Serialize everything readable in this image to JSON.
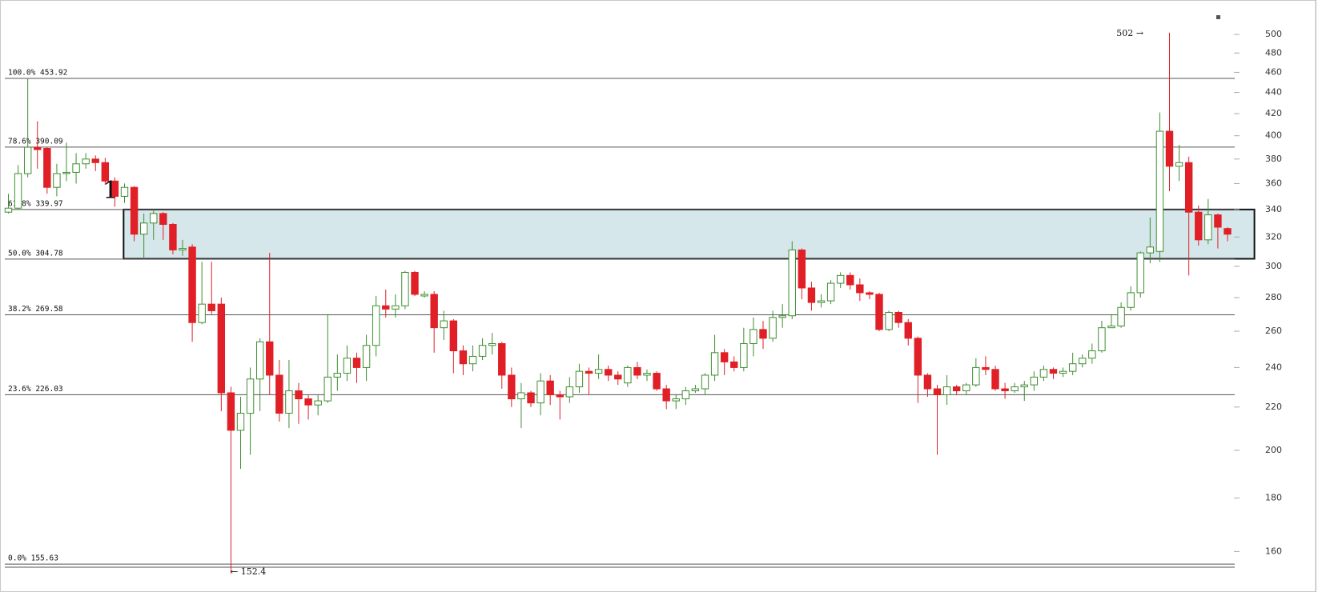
{
  "chart_data": {
    "type": "candlestick",
    "log_scale": true,
    "ylim": [
      146.6,
      539.5
    ],
    "yticks": [
      160,
      180,
      200,
      220,
      240,
      260,
      280,
      300,
      320,
      340,
      360,
      380,
      400,
      420,
      440,
      460,
      480,
      500
    ],
    "up_color": "#3d8f2f",
    "down_color": "#e01f26",
    "open": [
      338,
      341,
      368,
      390,
      389,
      357,
      368,
      369,
      376,
      380,
      377,
      362,
      350,
      357,
      322,
      330,
      337,
      329,
      311,
      313,
      265,
      276,
      276,
      227,
      209,
      217,
      234,
      254,
      236,
      217,
      228,
      224,
      221,
      223,
      235,
      237,
      245,
      240,
      252,
      275,
      273,
      275,
      296,
      281,
      282,
      262,
      266,
      249,
      242,
      246,
      252,
      253,
      236,
      224,
      227,
      222,
      233,
      226,
      225,
      230,
      238,
      237,
      239,
      236,
      232,
      240,
      236,
      237,
      229,
      223,
      224,
      228,
      229,
      236,
      248,
      243,
      240,
      253,
      261,
      256,
      268,
      269,
      311,
      286,
      277,
      278,
      289,
      294,
      288,
      283,
      282,
      261,
      271,
      265,
      256,
      236,
      229,
      226,
      230,
      228,
      231,
      240,
      239,
      229,
      228,
      230,
      231,
      235,
      239,
      237,
      238,
      242,
      245,
      249,
      262,
      263,
      274,
      283,
      309,
      310,
      404,
      374,
      377,
      338,
      318,
      336,
      326
    ],
    "high": [
      352,
      375,
      454,
      413,
      390,
      376,
      394,
      385,
      385,
      383,
      381,
      365,
      360,
      358,
      337,
      340,
      338,
      330,
      318,
      315,
      303,
      303,
      280,
      230,
      225,
      240,
      256,
      309,
      244,
      244,
      232,
      226,
      226,
      270,
      247,
      252,
      248,
      258,
      281,
      285,
      282,
      297,
      297,
      284,
      284,
      272,
      267,
      252,
      252,
      256,
      259,
      254,
      240,
      232,
      228,
      237,
      236,
      228,
      235,
      242,
      240,
      247,
      241,
      238,
      241,
      243,
      239,
      238,
      231,
      226,
      230,
      231,
      237,
      258,
      250,
      246,
      262,
      268,
      266,
      272,
      276,
      317,
      312,
      290,
      282,
      291,
      296,
      296,
      292,
      284,
      283,
      272,
      272,
      267,
      257,
      237,
      231,
      236,
      231,
      232,
      245,
      246,
      241,
      232,
      232,
      233,
      238,
      241,
      240,
      240,
      248,
      247,
      253,
      266,
      270,
      277,
      287,
      310,
      334,
      421,
      502,
      392,
      382,
      343,
      348,
      337,
      327
    ],
    "low": [
      337,
      340,
      365,
      372,
      352,
      350,
      362,
      360,
      372,
      370,
      359,
      342,
      345,
      317,
      305,
      318,
      318,
      308,
      307,
      254,
      264,
      270,
      218,
      152.4,
      192,
      198,
      218,
      226,
      213,
      210,
      212,
      214,
      216,
      222,
      228,
      233,
      232,
      233,
      246,
      268,
      268,
      273,
      281,
      280,
      248,
      255,
      237,
      236,
      238,
      244,
      247,
      229,
      220,
      210,
      220,
      216,
      221,
      214,
      222,
      227,
      226,
      234,
      233,
      231,
      230,
      234,
      233,
      228,
      219,
      219,
      221,
      227,
      226,
      233,
      236,
      238,
      238,
      246,
      250,
      254,
      262,
      267,
      279,
      272,
      274,
      276,
      286,
      285,
      278,
      279,
      260,
      260,
      262,
      252,
      222,
      225,
      198,
      221,
      226,
      226,
      230,
      236,
      228,
      224,
      227,
      223,
      228,
      233,
      234,
      235,
      236,
      240,
      242,
      248,
      262,
      262,
      272,
      280,
      302,
      303,
      354,
      362,
      294,
      314,
      315,
      312,
      317
    ],
    "close": [
      341,
      368,
      390,
      388,
      357,
      368,
      369,
      376,
      380,
      377,
      362,
      350,
      357,
      322,
      330,
      337,
      329,
      311,
      312,
      265,
      276,
      272,
      227,
      209,
      217,
      234,
      254,
      236,
      217,
      228,
      224,
      221,
      223,
      235,
      237,
      245,
      240,
      252,
      275,
      273,
      275,
      296,
      282,
      282,
      262,
      266,
      249,
      242,
      246,
      252,
      253,
      236,
      224,
      227,
      222,
      233,
      226,
      225,
      230,
      238,
      237,
      239,
      236,
      234,
      240,
      236,
      237,
      229,
      223,
      224,
      228,
      229,
      236,
      248,
      243,
      240,
      253,
      261,
      256,
      268,
      269,
      311,
      286,
      277,
      278,
      289,
      294,
      288,
      283,
      282,
      261,
      271,
      265,
      256,
      236,
      229,
      226,
      230,
      228,
      231,
      240,
      239,
      229,
      228,
      230,
      231,
      235,
      239,
      237,
      238,
      242,
      245,
      249,
      262,
      263,
      274,
      283,
      309,
      313,
      404,
      374,
      377,
      338,
      318,
      336,
      327,
      322
    ],
    "levels": [
      {
        "label": "100.0% 453.92",
        "value": 453.92
      },
      {
        "label": "78.6% 390.09",
        "value": 390.09
      },
      {
        "label": "61.8% 339.97",
        "value": 339.97
      },
      {
        "label": "50.0% 304.78",
        "value": 304.78
      },
      {
        "label": "38.2% 269.58",
        "value": 269.58
      },
      {
        "label": "23.6% 226.03",
        "value": 226.03
      },
      {
        "label": "0.0% 155.63",
        "value": 155.63
      }
    ],
    "zone": [
      305,
      340
    ],
    "annotations": [
      "502 →",
      "← 152.4",
      "1"
    ]
  }
}
